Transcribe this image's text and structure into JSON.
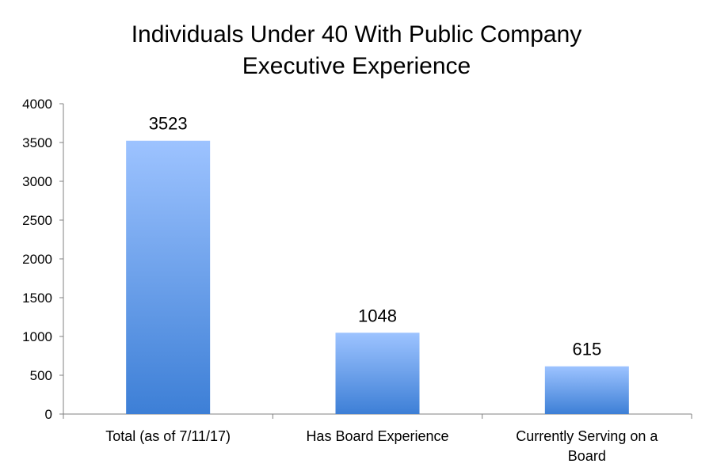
{
  "chart_data": {
    "type": "bar",
    "title_lines": [
      "Individuals Under 40 With Public Company",
      "Executive Experience"
    ],
    "categories": [
      [
        "Total (as of 7/11/17)"
      ],
      [
        "Has Board Experience"
      ],
      [
        "Currently Serving on a",
        "Board"
      ]
    ],
    "values": [
      3523,
      1048,
      615
    ],
    "data_labels": [
      "3523",
      "1048",
      "615"
    ],
    "ylim": [
      0,
      4000
    ],
    "yticks": [
      "0",
      "500",
      "1000",
      "1500",
      "2000",
      "2500",
      "3000",
      "3500",
      "4000"
    ],
    "grid": false,
    "legend": "none",
    "bar_color_top": "#9dc3ff",
    "bar_color_bottom": "#3d7fd6"
  }
}
